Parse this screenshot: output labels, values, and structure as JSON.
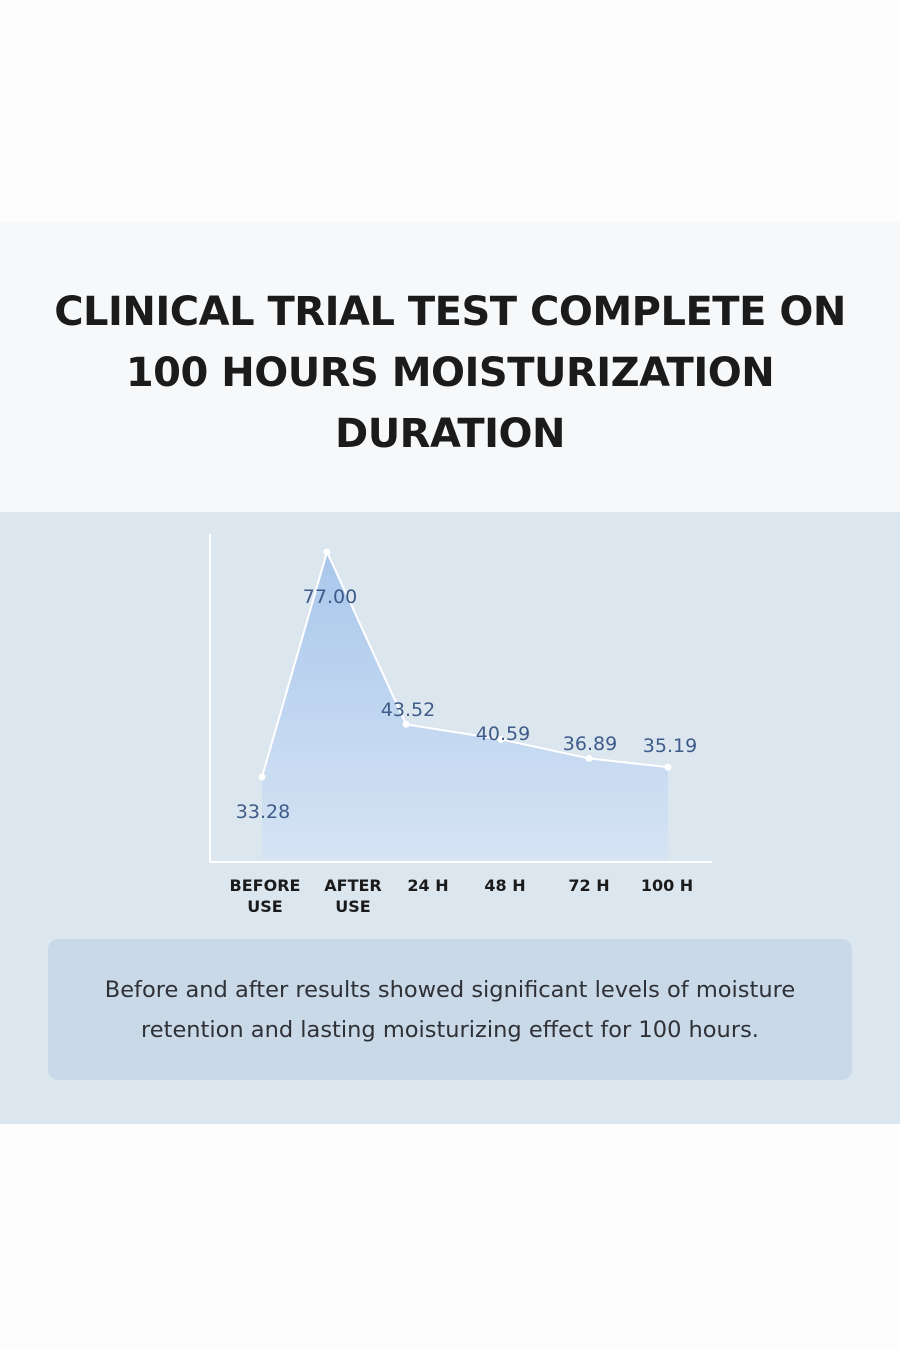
{
  "title_lines": [
    "CLINICAL TRIAL TEST COMPLETE ON",
    "100 HOURS MOISTURIZATION",
    "DURATION"
  ],
  "caption_lines": [
    "Before and after results showed significant levels of moisture",
    "retention and  lasting moisturizing effect for 100 hours."
  ],
  "colors": {
    "chart_background": "#dce6ef",
    "area_fill_top": "#a9c7ec",
    "area_fill_bottom": "#d6e4f4",
    "line": "#ffffff",
    "value_label": "#3f5b8a",
    "category_label": "#1b1b1b",
    "caption_box": "#c9d9e8"
  },
  "chart_data": {
    "type": "area",
    "categories": [
      [
        "BEFORE",
        "USE"
      ],
      [
        "AFTER",
        "USE"
      ],
      [
        "24 H"
      ],
      [
        "48 H"
      ],
      [
        "72 H"
      ],
      [
        "100 H"
      ]
    ],
    "values": [
      33.28,
      77.0,
      43.52,
      40.59,
      36.89,
      35.19
    ],
    "value_labels": [
      "33.28",
      "77.00",
      "43.52",
      "40.59",
      "36.89",
      "35.19"
    ],
    "grid": false,
    "legend": "none"
  }
}
